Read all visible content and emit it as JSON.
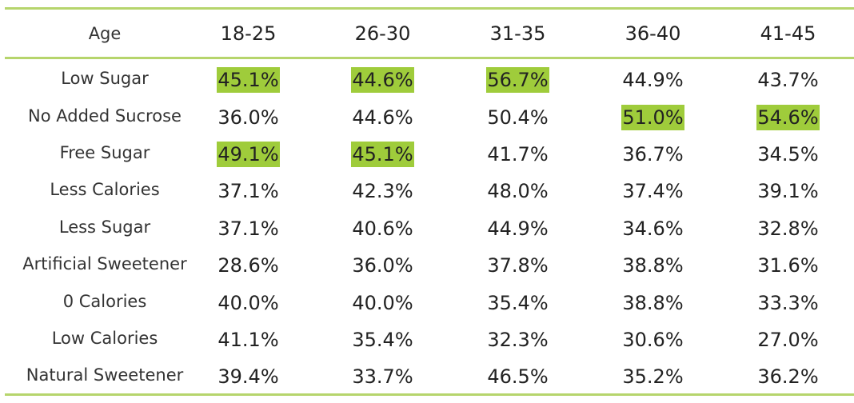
{
  "table": {
    "header": [
      "Age",
      "18-25",
      "26-30",
      "31-35",
      "36-40",
      "41-45"
    ],
    "highlight_color": "#9fcc3b",
    "rows": [
      {
        "label": "Low Sugar",
        "cells": [
          "45.1%",
          "44.6%",
          "56.7%",
          "44.9%",
          "43.7%"
        ],
        "highlight": [
          0,
          1,
          2
        ]
      },
      {
        "label": "No Added Sucrose",
        "cells": [
          "36.0%",
          "44.6%",
          "50.4%",
          "51.0%",
          "54.6%"
        ],
        "highlight": [
          3,
          4
        ]
      },
      {
        "label": "Free Sugar",
        "cells": [
          "49.1%",
          "45.1%",
          "41.7%",
          "36.7%",
          "34.5%"
        ],
        "highlight": [
          0,
          1
        ]
      },
      {
        "label": "Less Calories",
        "cells": [
          "37.1%",
          "42.3%",
          "48.0%",
          "37.4%",
          "39.1%"
        ],
        "highlight": []
      },
      {
        "label": "Less Sugar",
        "cells": [
          "37.1%",
          "40.6%",
          "44.9%",
          "34.6%",
          "32.8%"
        ],
        "highlight": []
      },
      {
        "label": "Artificial Sweetener",
        "cells": [
          "28.6%",
          "36.0%",
          "37.8%",
          "38.8%",
          "31.6%"
        ],
        "highlight": []
      },
      {
        "label": "0 Calories",
        "cells": [
          "40.0%",
          "40.0%",
          "35.4%",
          "38.8%",
          "33.3%"
        ],
        "highlight": []
      },
      {
        "label": "Low Calories",
        "cells": [
          "41.1%",
          "35.4%",
          "32.3%",
          "30.6%",
          "27.0%"
        ],
        "highlight": []
      },
      {
        "label": "Natural Sweetener",
        "cells": [
          "39.4%",
          "33.7%",
          "46.5%",
          "35.2%",
          "36.2%"
        ],
        "highlight": []
      }
    ]
  }
}
